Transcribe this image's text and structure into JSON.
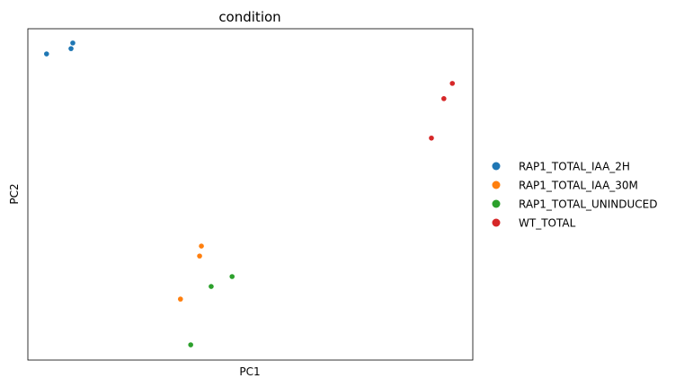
{
  "chart_data": {
    "type": "scatter",
    "title": "condition",
    "xlabel": "PC1",
    "ylabel": "PC2",
    "xlim": [
      0,
      100
    ],
    "ylim": [
      0,
      100
    ],
    "grid": false,
    "legend_position": "right-outside",
    "series": [
      {
        "name": "RAP1_TOTAL_IAA_2H",
        "color": "#1f77b4",
        "points": [
          [
            4.2,
            92.4
          ],
          [
            9.7,
            94.0
          ],
          [
            10.1,
            95.7
          ]
        ]
      },
      {
        "name": "RAP1_TOTAL_IAA_30M",
        "color": "#ff7f0e",
        "points": [
          [
            39.0,
            34.4
          ],
          [
            38.6,
            31.4
          ],
          [
            34.3,
            18.4
          ]
        ]
      },
      {
        "name": "RAP1_TOTAL_UNINDUCED",
        "color": "#2ca02c",
        "points": [
          [
            45.9,
            25.2
          ],
          [
            41.2,
            22.2
          ],
          [
            36.6,
            4.6
          ]
        ]
      },
      {
        "name": "WT_TOTAL",
        "color": "#d62728",
        "points": [
          [
            95.4,
            83.5
          ],
          [
            93.5,
            78.9
          ],
          [
            90.7,
            67.0
          ]
        ]
      }
    ]
  }
}
